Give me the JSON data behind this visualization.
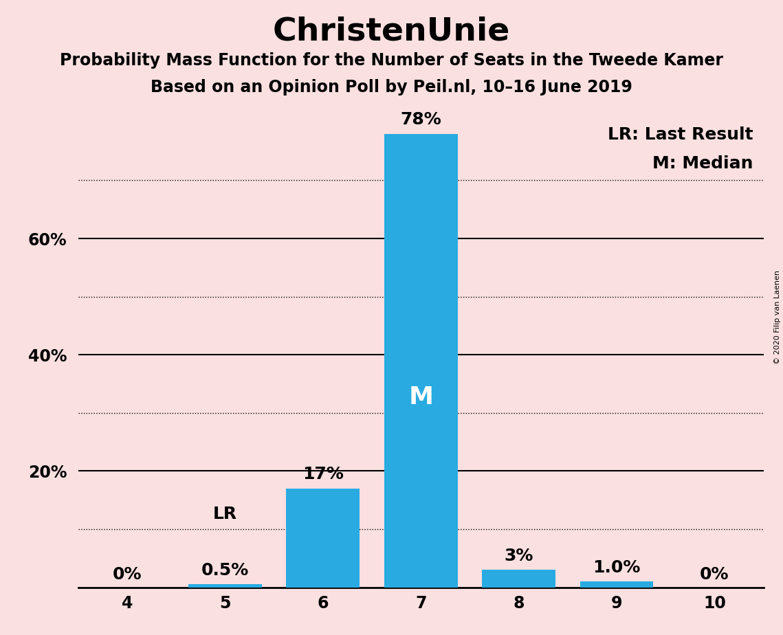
{
  "title": "ChristenUnie",
  "subtitle1": "Probability Mass Function for the Number of Seats in the Tweede Kamer",
  "subtitle2": "Based on an Opinion Poll by Peil.nl, 10–16 June 2019",
  "copyright": "© 2020 Filip van Laenen",
  "categories": [
    4,
    5,
    6,
    7,
    8,
    9,
    10
  ],
  "values": [
    0.0,
    0.5,
    17.0,
    78.0,
    3.0,
    1.0,
    0.0
  ],
  "bar_color": "#29ABE2",
  "background_color": "#FAE0E0",
  "bar_labels": [
    "0%",
    "0.5%",
    "17%",
    "78%",
    "3%",
    "1.0%",
    "0%"
  ],
  "median_seat": 7,
  "last_result_seat": 5,
  "legend_lr": "LR: Last Result",
  "legend_m": "M: Median",
  "ylim": [
    0,
    83
  ],
  "solid_yticks": [
    20,
    40,
    60
  ],
  "dotted_yticks": [
    10,
    30,
    50,
    70
  ],
  "title_fontsize": 34,
  "subtitle_fontsize": 17,
  "tick_fontsize": 17,
  "legend_fontsize": 18,
  "bar_label_fontsize": 18,
  "median_label_fontsize": 26
}
